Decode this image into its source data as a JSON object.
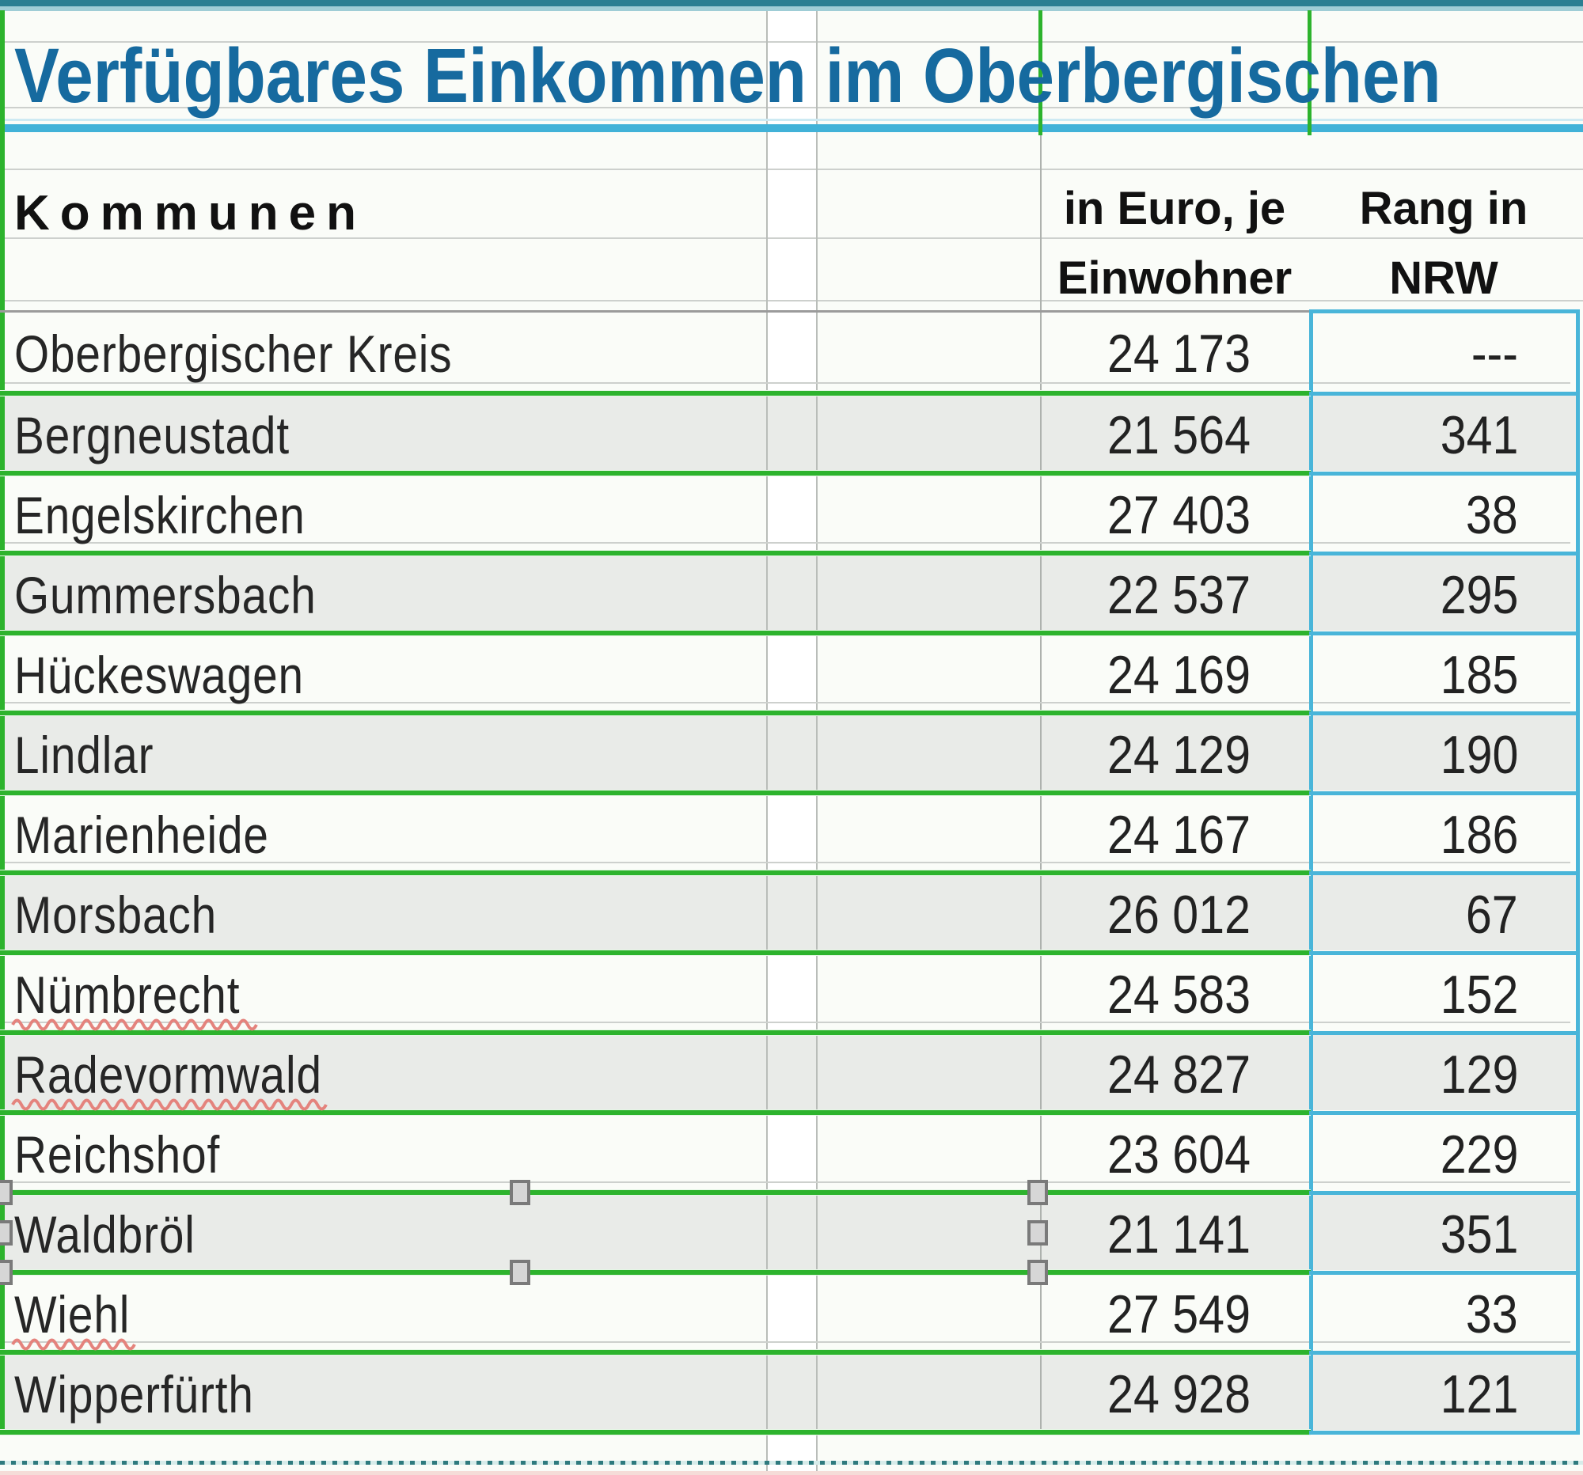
{
  "title": {
    "text": "Verfügbares Einkommen im Oberbergischen",
    "color": "#166a9f"
  },
  "table": {
    "header": {
      "kommunen": "Kommunen",
      "euro_line1": "in Euro, je",
      "euro_line2": "Einwohner",
      "rang_line1": "Rang in",
      "rang_line2": "NRW"
    },
    "rows": [
      {
        "kommune": "Oberbergischer Kreis",
        "euro": "24 173",
        "rang": "---",
        "shaded": false,
        "spellcheck": false
      },
      {
        "kommune": "Bergneustadt",
        "euro": "21 564",
        "rang": "341",
        "shaded": true,
        "spellcheck": false
      },
      {
        "kommune": "Engelskirchen",
        "euro": "27 403",
        "rang": "38",
        "shaded": false,
        "spellcheck": false
      },
      {
        "kommune": "Gummersbach",
        "euro": "22 537",
        "rang": "295",
        "shaded": true,
        "spellcheck": false
      },
      {
        "kommune": "Hückeswagen",
        "euro": "24 169",
        "rang": "185",
        "shaded": false,
        "spellcheck": false
      },
      {
        "kommune": "Lindlar",
        "euro": "24 129",
        "rang": "190",
        "shaded": true,
        "spellcheck": false
      },
      {
        "kommune": "Marienheide",
        "euro": "24 167",
        "rang": "186",
        "shaded": false,
        "spellcheck": false
      },
      {
        "kommune": "Morsbach",
        "euro": "26 012",
        "rang": "67",
        "shaded": true,
        "spellcheck": false
      },
      {
        "kommune": "Nümbrecht",
        "euro": "24 583",
        "rang": "152",
        "shaded": false,
        "spellcheck": true
      },
      {
        "kommune": "Radevormwald",
        "euro": "24 827",
        "rang": "129",
        "shaded": true,
        "spellcheck": true
      },
      {
        "kommune": "Reichshof",
        "euro": "23 604",
        "rang": "229",
        "shaded": false,
        "spellcheck": false
      },
      {
        "kommune": "Waldbröl",
        "euro": "21 141",
        "rang": "351",
        "shaded": true,
        "spellcheck": false
      },
      {
        "kommune": "Wiehl",
        "euro": "27 549",
        "rang": "33",
        "shaded": false,
        "spellcheck": true
      },
      {
        "kommune": "Wipperfürth",
        "euro": "24 928",
        "rang": "121",
        "shaded": true,
        "spellcheck": false
      }
    ]
  },
  "colors": {
    "title_blue": "#166a9f",
    "border_green": "#2db32d",
    "border_cyan": "#49b5d9",
    "shaded_row_gray": "#e9ebe8",
    "top_bar_teal": "#2a7e92",
    "spellcheck_red": "#e4837d",
    "pagebreak_teal": "#2e7a7e"
  }
}
